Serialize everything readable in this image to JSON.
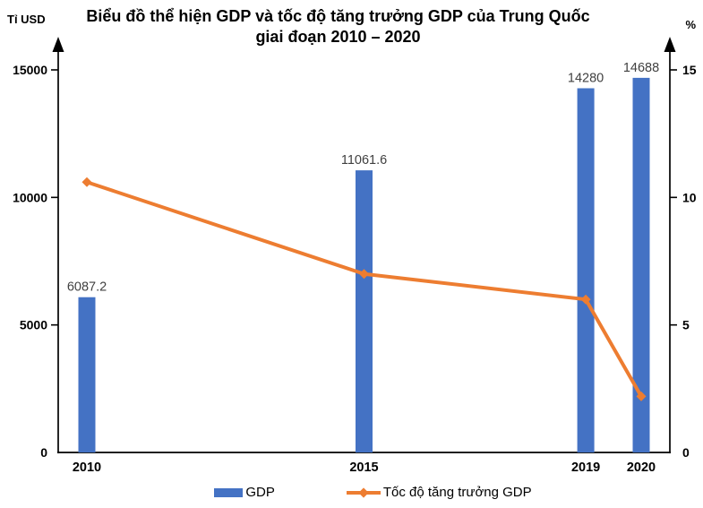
{
  "title": {
    "line1": "Biểu đồ thể hiện GDP và tốc độ tăng trưởng GDP của Trung Quốc",
    "line2": "giai đoạn 2010 – 2020"
  },
  "chart_data": {
    "type": "combo-bar-line",
    "categories": [
      "2010",
      "2015",
      "2019",
      "2020"
    ],
    "x_years": [
      2010,
      2015,
      2019,
      2020
    ],
    "series": [
      {
        "name": "GDP",
        "type": "bar",
        "axis": "left",
        "color": "#4472C4",
        "values": [
          6087.2,
          11061.6,
          14280,
          14688
        ],
        "data_labels": [
          "6087.2",
          "11061.6",
          "14280",
          "14688"
        ]
      },
      {
        "name": "Tốc độ tăng trưởng GDP",
        "type": "line",
        "axis": "right",
        "color": "#ED7D31",
        "marker": "diamond",
        "values": [
          10.6,
          7.0,
          6.0,
          2.2
        ]
      }
    ],
    "left_axis": {
      "label": "Tỉ USD",
      "ticks": [
        "0",
        "5000",
        "10000",
        "15000"
      ],
      "tick_values": [
        0,
        5000,
        10000,
        15000
      ],
      "max": 15000
    },
    "right_axis": {
      "label": "%",
      "ticks": [
        "0",
        "5",
        "10",
        "15"
      ],
      "tick_values": [
        0,
        5,
        10,
        15
      ],
      "max": 15
    },
    "legend": [
      "GDP",
      "Tốc độ tăng trưởng GDP"
    ],
    "legend_position": "bottom",
    "grid": false,
    "data_label_color": "#404040",
    "axis_color": "#000000"
  }
}
